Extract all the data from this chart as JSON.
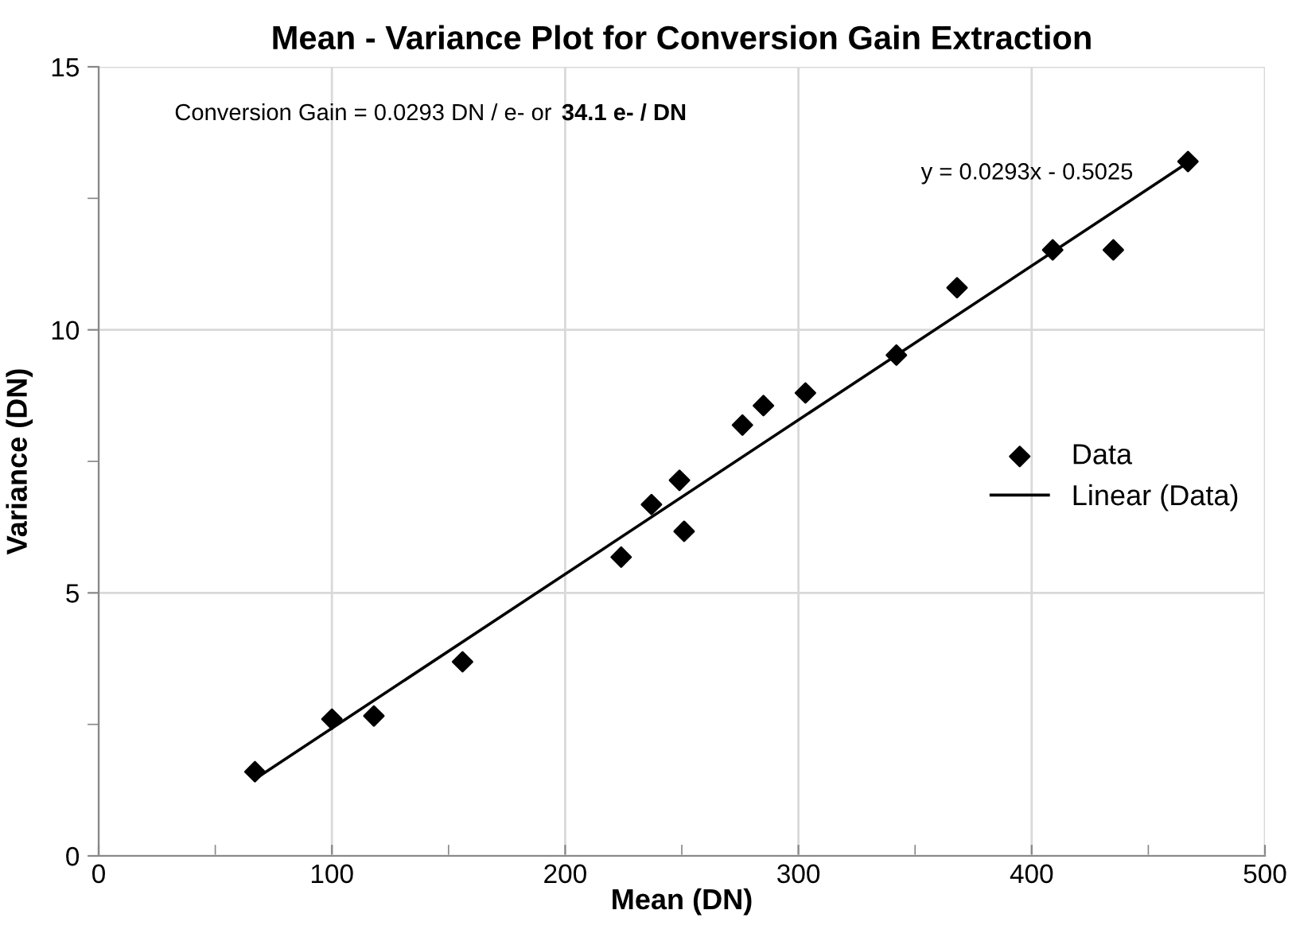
{
  "chart_data": {
    "type": "scatter",
    "title": "Mean - Variance Plot for Conversion Gain Extraction",
    "xlabel": "Mean (DN)",
    "ylabel": "Variance (DN)",
    "annotations": [
      "Conversion Gain = 0.0293 DN / e- or",
      "34.1 e- / DN",
      "y = 0.0293x - 0.5025"
    ],
    "series": [
      {
        "name": "Data",
        "color": "#000000",
        "marker": "diamond",
        "x": [
          67,
          100,
          118,
          156,
          224,
          237,
          249,
          251,
          276,
          285,
          303,
          342,
          368,
          409,
          435,
          467
        ],
        "values": [
          1.6,
          2.6,
          2.66,
          3.69,
          5.68,
          6.68,
          7.14,
          6.17,
          8.19,
          8.56,
          8.8,
          9.52,
          10.8,
          11.52,
          11.52,
          13.2
        ]
      },
      {
        "name": "Linear (Data)",
        "type": "line",
        "color": "#000000",
        "marker": "none",
        "line_style": "solid",
        "x": [
          67,
          467
        ],
        "values": [
          1.46,
          13.18
        ]
      }
    ],
    "xlim": [
      0,
      500
    ],
    "ylim": [
      0,
      15
    ],
    "xticks": [
      0,
      {
        "value": 50,
        "label": null
      },
      100,
      {
        "value": 150,
        "label": null
      },
      200,
      {
        "value": 250,
        "label": null
      },
      300,
      {
        "value": 350,
        "label": null
      },
      400,
      {
        "value": 450,
        "label": null
      },
      500
    ],
    "yticks": [
      0,
      {
        "value": 2.5,
        "label": null
      },
      5,
      {
        "value": 7.5,
        "label": null
      },
      10,
      {
        "value": 12.5,
        "label": null
      },
      15
    ],
    "grid": true,
    "legend": "right"
  }
}
